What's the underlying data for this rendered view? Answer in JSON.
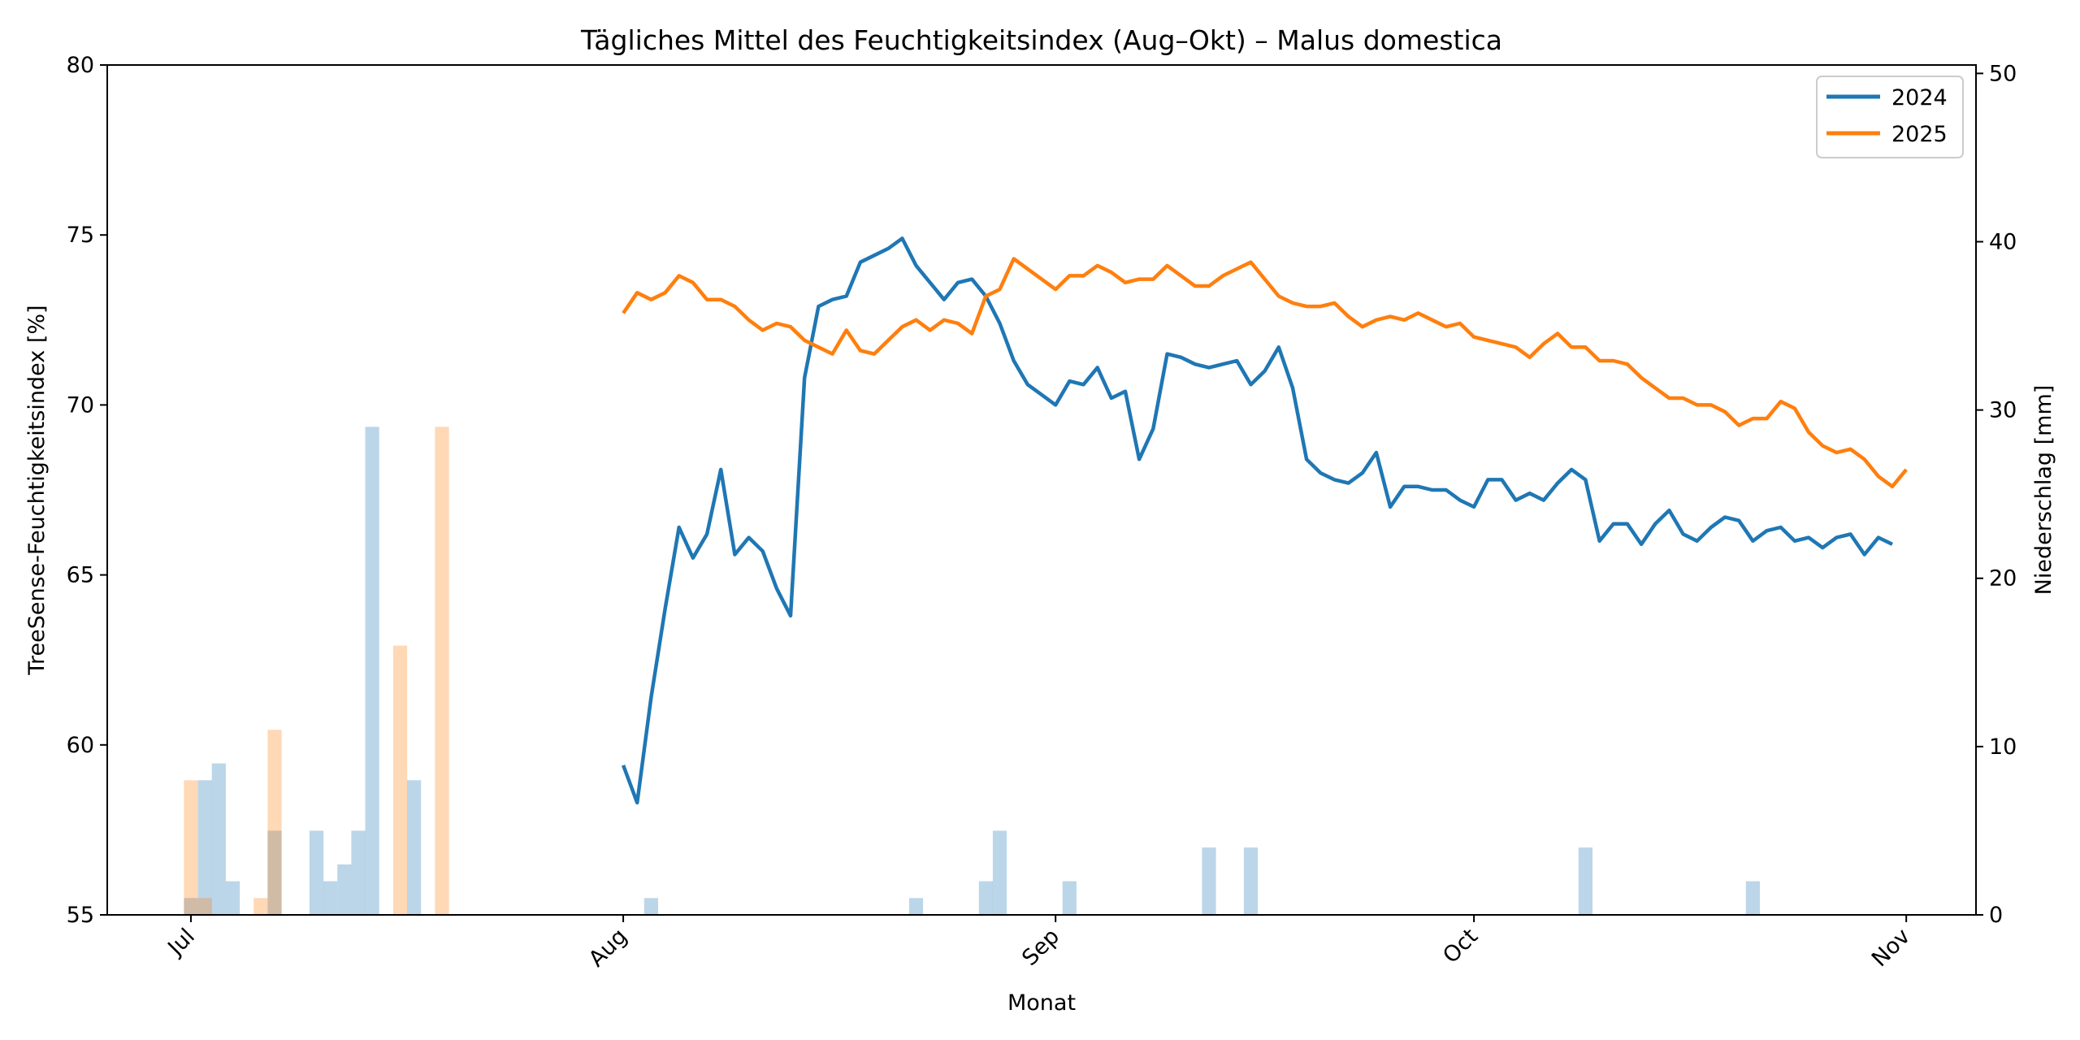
{
  "chart_data": {
    "type": "line",
    "title": "Tägliches Mittel des Feuchtigkeitsindex (Aug–Okt) – Malus domestica",
    "xlabel": "Monat",
    "ylabel": "TreeSense-Feuchtigkeitsindex [%]",
    "y2label": "Niederschlag [mm]",
    "xlim": [
      "2024-06-25",
      "2024-11-06"
    ],
    "ylim": [
      55,
      80
    ],
    "y2lim": [
      0,
      50.5
    ],
    "x_ticks": [
      {
        "date": "2024-07-01",
        "label": "Jul"
      },
      {
        "date": "2024-08-01",
        "label": "Aug"
      },
      {
        "date": "2024-09-01",
        "label": "Sep"
      },
      {
        "date": "2024-10-01",
        "label": "Oct"
      },
      {
        "date": "2024-11-01",
        "label": "Nov"
      }
    ],
    "y_ticks": [
      "55",
      "60",
      "65",
      "70",
      "75",
      "80"
    ],
    "y2_ticks": [
      "0",
      "10",
      "20",
      "30",
      "40",
      "50"
    ],
    "legend_position": "top-right",
    "series": [
      {
        "name": "2024",
        "color": "#1f77b4",
        "x_start": "2024-08-01",
        "values": [
          59.4,
          58.3,
          61.4,
          64.0,
          66.4,
          65.5,
          66.2,
          68.1,
          65.6,
          66.1,
          65.7,
          64.6,
          63.8,
          70.8,
          72.9,
          73.1,
          73.2,
          74.2,
          74.4,
          74.6,
          74.9,
          74.1,
          73.6,
          73.1,
          73.6,
          73.7,
          73.2,
          72.4,
          71.3,
          70.6,
          70.3,
          70.0,
          70.7,
          70.6,
          71.1,
          70.2,
          70.4,
          68.4,
          69.3,
          71.5,
          71.4,
          71.2,
          71.1,
          71.2,
          71.3,
          70.6,
          71.0,
          71.7,
          70.5,
          68.4,
          68.0,
          67.8,
          67.7,
          68.0,
          68.6,
          67.0,
          67.6,
          67.6,
          67.5,
          67.5,
          67.2,
          67.0,
          67.8,
          67.8,
          67.2,
          67.4,
          67.2,
          67.7,
          68.1,
          67.8,
          66.0,
          66.5,
          66.5,
          65.9,
          66.5,
          66.9,
          66.2,
          66.0,
          66.4,
          66.7,
          66.6,
          66.0,
          66.3,
          66.4,
          66.0,
          66.1,
          65.8,
          66.1,
          66.2,
          65.6,
          66.1,
          65.9
        ]
      },
      {
        "name": "2025",
        "color": "#ff7f0e",
        "x_start": "2024-08-01",
        "values": [
          72.7,
          73.3,
          73.1,
          73.3,
          73.8,
          73.6,
          73.1,
          73.1,
          72.9,
          72.5,
          72.2,
          72.4,
          72.3,
          71.9,
          71.7,
          71.5,
          72.2,
          71.6,
          71.5,
          71.9,
          72.3,
          72.5,
          72.2,
          72.5,
          72.4,
          72.1,
          73.2,
          73.4,
          74.3,
          74.0,
          73.7,
          73.4,
          73.8,
          73.8,
          74.1,
          73.9,
          73.6,
          73.7,
          73.7,
          74.1,
          73.8,
          73.5,
          73.5,
          73.8,
          74.0,
          74.2,
          73.7,
          73.2,
          73.0,
          72.9,
          72.9,
          73.0,
          72.6,
          72.3,
          72.5,
          72.6,
          72.5,
          72.7,
          72.5,
          72.3,
          72.4,
          72.0,
          71.9,
          71.8,
          71.7,
          71.4,
          71.8,
          72.1,
          71.7,
          71.7,
          71.3,
          71.3,
          71.2,
          70.8,
          70.5,
          70.2,
          70.2,
          70.0,
          70.0,
          69.8,
          69.4,
          69.6,
          69.6,
          70.1,
          69.9,
          69.2,
          68.8,
          68.6,
          68.7,
          68.4,
          67.9,
          67.6,
          68.1
        ]
      }
    ],
    "precipitation": {
      "unit": "mm",
      "series": [
        {
          "name": "2024",
          "color": "#1f77b4",
          "x_start": "2024-07-01",
          "values": [
            1,
            8,
            9,
            2,
            0,
            0,
            5,
            0,
            0,
            5,
            2,
            3,
            5,
            29,
            0,
            0,
            8,
            0,
            0,
            0,
            0,
            0,
            0,
            0,
            0,
            0,
            0,
            0,
            0,
            0,
            0,
            0,
            0,
            1,
            0,
            0,
            0,
            0,
            0,
            0,
            0,
            0,
            0,
            0,
            0,
            0,
            0,
            0,
            0,
            0,
            0,
            0,
            1,
            0,
            0,
            0,
            0,
            2,
            5,
            0,
            0,
            0,
            0,
            2,
            0,
            0,
            0,
            0,
            0,
            0,
            0,
            0,
            0,
            4,
            0,
            0,
            4,
            0,
            0,
            0,
            0,
            0,
            0,
            0,
            0,
            0,
            0,
            0,
            0,
            0,
            0,
            0,
            0,
            0,
            0,
            0,
            0,
            0,
            0,
            0,
            4,
            0,
            0,
            0,
            0,
            0,
            0,
            0,
            0,
            0,
            0,
            0,
            2,
            0,
            0,
            0,
            0,
            0,
            0,
            0,
            0,
            0,
            0,
            0,
            0,
            0,
            0,
            0
          ]
        },
        {
          "name": "2025",
          "color": "#ff7f0e",
          "x_start": "2024-07-01",
          "values": [
            8,
            1,
            0,
            0,
            0,
            1,
            11,
            0,
            0,
            0,
            0,
            0,
            0,
            0,
            0,
            16,
            0,
            0,
            29,
            0,
            0,
            0,
            0,
            0,
            0,
            0,
            0,
            0,
            0,
            0,
            0,
            0,
            0,
            0,
            0,
            0,
            0,
            0,
            0,
            0,
            0,
            0,
            0,
            0,
            0,
            0,
            0,
            0,
            0,
            0,
            0,
            0,
            0,
            0,
            0,
            0,
            0,
            0,
            0,
            0,
            0,
            0,
            0,
            0,
            0,
            0,
            0,
            0,
            0,
            0,
            0,
            0,
            0,
            0,
            0,
            0,
            0,
            0,
            0,
            0,
            0,
            0,
            0,
            0,
            0,
            0,
            0,
            0,
            0,
            0,
            0,
            0,
            0,
            0,
            0,
            0,
            0,
            0,
            0,
            0,
            0,
            0,
            0,
            0,
            0,
            0,
            0,
            0,
            0,
            0,
            0,
            0,
            0,
            0,
            0,
            0,
            0,
            0,
            0,
            0,
            0,
            0,
            0,
            0,
            0,
            0,
            0,
            0,
            0
          ]
        }
      ]
    }
  }
}
